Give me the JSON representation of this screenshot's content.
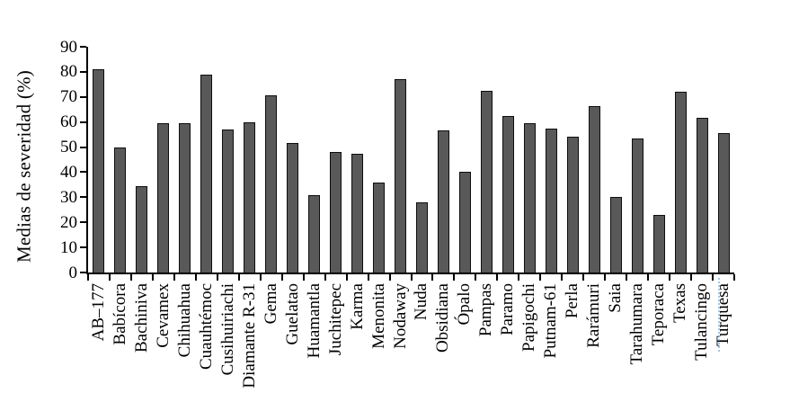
{
  "chart_data": {
    "type": "bar",
    "title": "",
    "xlabel": "",
    "ylabel": "Medias de severidad (%)",
    "ylim": [
      0,
      90
    ],
    "yticks": [
      0,
      10,
      20,
      30,
      40,
      50,
      60,
      70,
      80,
      90
    ],
    "grid": false,
    "legend": "none",
    "bar_fill_color": "#595959",
    "bar_border_color": "#0d0d0d",
    "axis_color": "#000000",
    "categories": [
      "AB–177",
      "Babícora",
      "Bachiniva",
      "Cevamex",
      "Chihuahua",
      "Cuauhtémoc",
      "Cusihuiriachi",
      "Diamante R-31",
      "Gema",
      "Guelatao",
      "Huamantla",
      "Juchitepec",
      "Karma",
      "Menonita",
      "Nodaway",
      "Nuda",
      "Obsidiana",
      "Ópalo",
      "Pampas",
      "Paramo",
      "Papigochi",
      "Putnam-61",
      "Perla",
      "Rarámuri",
      "Saia",
      "Tarahumara",
      "Teporaca",
      "Texas",
      "Tulancingo",
      "Turquesa"
    ],
    "values": [
      81,
      50,
      34.5,
      59.5,
      59.5,
      79,
      57,
      60,
      70.5,
      51.5,
      31,
      48,
      47.5,
      36,
      77,
      28,
      56.5,
      40,
      72.5,
      62.5,
      59.5,
      57.5,
      54,
      66.5,
      30,
      53.5,
      23,
      72,
      61.5,
      55.5
    ]
  },
  "artifacts": {
    "spellcheck_note": "blue dotted underline beside last x label"
  }
}
